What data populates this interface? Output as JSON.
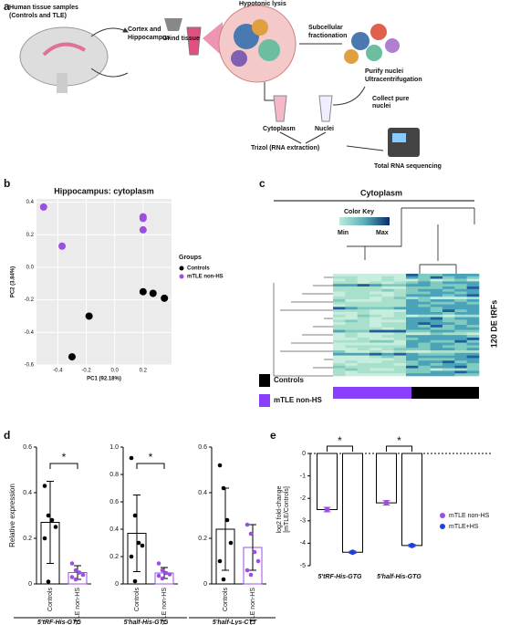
{
  "panel_labels": [
    "a",
    "b",
    "c",
    "d",
    "e"
  ],
  "diagram": {
    "samples": "Human tissue samples",
    "samples_sub": "(Controls and TLE)",
    "regions": "Cortex and",
    "regions2": "Hippocampus",
    "grind": "Grind tissue",
    "lysis": "Hypotonic lysis",
    "fraction": "Subcellular",
    "fraction2": "fractionation",
    "purify": "Purify nuclei",
    "ultra": "Ultracentrifugation",
    "collect": "Collect pure",
    "collect2": "nuclei",
    "cytoplasm": "Cytoplasm",
    "nuclei": "Nuclei",
    "trizol": "Trizol (RNA extraction)",
    "sequencing": "Total RNA sequencing"
  },
  "heatmap": {
    "title": "Cytoplasm",
    "color_key": "Color Key",
    "min": "Min",
    "max": "Max",
    "rows": "120 DE tRFs",
    "groups": [
      {
        "name": "Controls",
        "color": "#000000"
      },
      {
        "name": "mTLE non-HS",
        "color": "#8a3ffc"
      }
    ]
  },
  "chart_data": [
    {
      "type": "scatter",
      "title": "Hippocampus: cytoplasm",
      "xlabel": "PC1 (92.18%)",
      "ylabel": "PC2 (3.84%)",
      "legend_title": "Groups",
      "xlim": [
        -0.55,
        0.4
      ],
      "xticks": [
        -0.4,
        -0.2,
        {
          "value": 0,
          "label": "0.0"
        },
        0.2
      ],
      "ylim": [
        -0.6,
        0.42
      ],
      "yticks": [
        -0.6,
        -0.4,
        -0.2,
        {
          "value": 0,
          "label": "0.0"
        },
        0.2,
        0.4
      ],
      "grid": true,
      "series": [
        {
          "name": "Controls",
          "color": "#000000",
          "x": [
            0.2,
            0.27,
            0.35,
            -0.18,
            -0.3
          ],
          "values": [
            -0.15,
            -0.16,
            -0.19,
            -0.3,
            -0.55
          ]
        },
        {
          "name": "mTLE non-HS",
          "color": "#9b4fe0",
          "x": [
            -0.5,
            -0.37,
            0.2,
            0.2,
            0.2
          ],
          "values": [
            0.37,
            0.13,
            0.31,
            0.3,
            0.23
          ]
        }
      ]
    },
    {
      "type": "dotbar",
      "ylabel": "Relative expression",
      "xlabel": "5'tRF-His-GTG",
      "significance": "*",
      "categories": [
        "Controls",
        "mTLE non-HS"
      ],
      "colors": [
        "#000000",
        "#9b4fe0"
      ],
      "values": [
        0.27,
        0.05
      ],
      "errors": [
        0.18,
        0.03
      ],
      "points": [
        [
          0.43,
          0.3,
          0.28,
          0.25,
          0.2,
          0.01
        ],
        [
          0.09,
          0.06,
          0.05,
          0.04,
          0.03,
          0.02
        ]
      ],
      "ylim": [
        0,
        0.6
      ],
      "yticks": [
        0,
        0.2,
        0.4,
        0.6
      ]
    },
    {
      "type": "dotbar",
      "xlabel": "5'half-His-GTG",
      "significance": "*",
      "categories": [
        "Controls",
        "mTLE non-HS"
      ],
      "colors": [
        "#000000",
        "#9b4fe0"
      ],
      "values": [
        0.37,
        0.08
      ],
      "errors": [
        0.28,
        0.04
      ],
      "points": [
        [
          0.92,
          0.5,
          0.3,
          0.28,
          0.2,
          0.02
        ],
        [
          0.15,
          0.1,
          0.08,
          0.07,
          0.06,
          0.04
        ]
      ],
      "ylim": [
        0,
        1
      ],
      "yticks": [
        0,
        0.2,
        0.4,
        0.6,
        0.8,
        {
          "value": 1,
          "label": "1.0"
        }
      ]
    },
    {
      "type": "dotbar",
      "xlabel": "5'half-Lys-CTT",
      "categories": [
        "Controls",
        "mTLE non-HS"
      ],
      "colors": [
        "#000000",
        "#9b4fe0"
      ],
      "values": [
        0.24,
        0.16
      ],
      "errors": [
        0.18,
        0.1
      ],
      "points": [
        [
          0.52,
          0.42,
          0.28,
          0.18,
          0.1,
          0.02
        ],
        [
          0.26,
          0.22,
          0.14,
          0.1,
          0.06,
          0.04
        ]
      ],
      "ylim": [
        0,
        0.6
      ],
      "yticks": [
        0,
        0.2,
        0.4,
        0.6
      ]
    },
    {
      "type": "foldbar",
      "ylabel": [
        "log2 fold-change",
        "[mTLE/Controls]"
      ],
      "significance": [
        "*",
        "*"
      ],
      "categories": [
        "5'tRF-His-GTG",
        "5'half-His-GTG"
      ],
      "ylim": [
        -5,
        0
      ],
      "yticks": [
        0,
        -1,
        -2,
        -3,
        -4,
        -5
      ],
      "series": [
        {
          "name": "mTLE non-HS",
          "color": "#9b4fe0",
          "values": [
            -2.5,
            -2.2
          ],
          "errors": [
            0.1,
            0.1
          ]
        },
        {
          "name": "mTLE+HS",
          "color": "#1f3fe0",
          "values": [
            -4.4,
            -4.1
          ],
          "errors": [
            0.05,
            0.05
          ]
        }
      ]
    }
  ]
}
